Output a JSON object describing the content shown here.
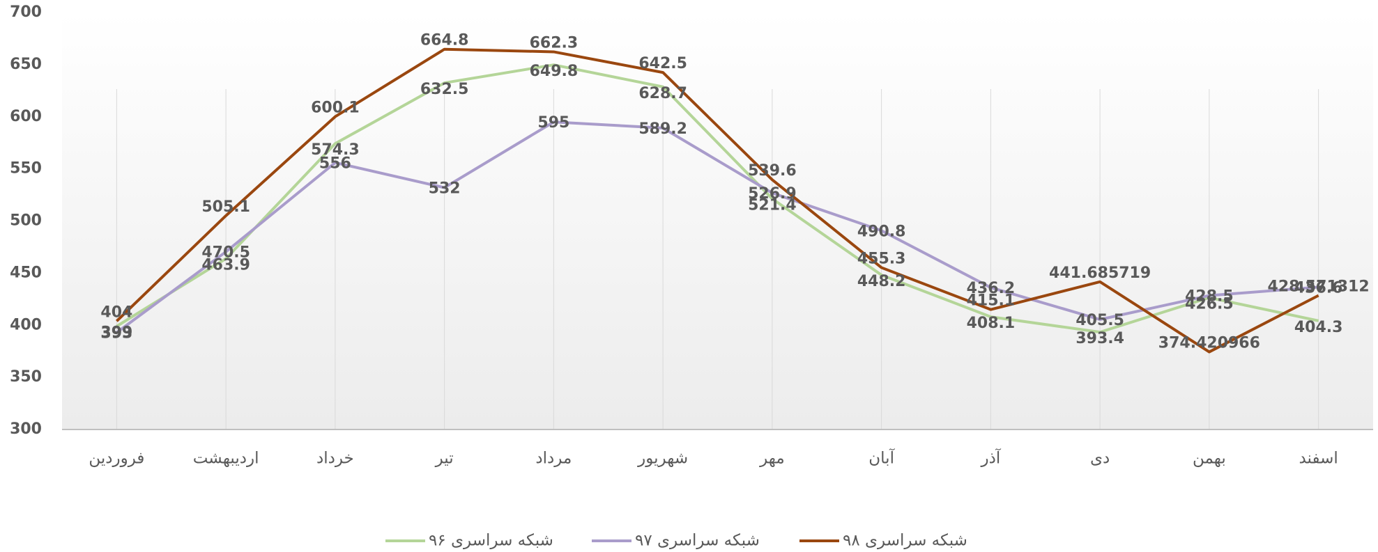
{
  "chart_data": {
    "type": "line",
    "categories": [
      "فروردین",
      "اردیبهشت",
      "خرداد",
      "تیر",
      "مرداد",
      "شهریور",
      "مهر",
      "آبان",
      "آذر",
      "دی",
      "بهمن",
      "اسفند"
    ],
    "series": [
      {
        "name": "شبکه سراسری ۹۶",
        "color": "#b4d598",
        "values": [
          399,
          463.9,
          574.3,
          632.5,
          649.8,
          628.7,
          521.4,
          448.2,
          408.1,
          393.4,
          426.5,
          404.3
        ]
      },
      {
        "name": "شبکه سراسری ۹۷",
        "color": "#a99ccb",
        "values": [
          393,
          470.5,
          556,
          532,
          595,
          589.2,
          526.9,
          490.8,
          436.2,
          405.5,
          428.5,
          436.6
        ]
      },
      {
        "name": "شبکه سراسری ۹۸",
        "color": "#9a470f",
        "values": [
          404,
          505.1,
          600.1,
          664.8,
          662.3,
          642.5,
          539.6,
          455.3,
          415.1,
          441.685719,
          374.420966,
          428.571312
        ]
      }
    ],
    "ylim": [
      300,
      700
    ],
    "yticks": [
      300,
      350,
      400,
      450,
      500,
      550,
      600,
      650,
      700
    ],
    "grid": "x",
    "legend": "bottom"
  }
}
